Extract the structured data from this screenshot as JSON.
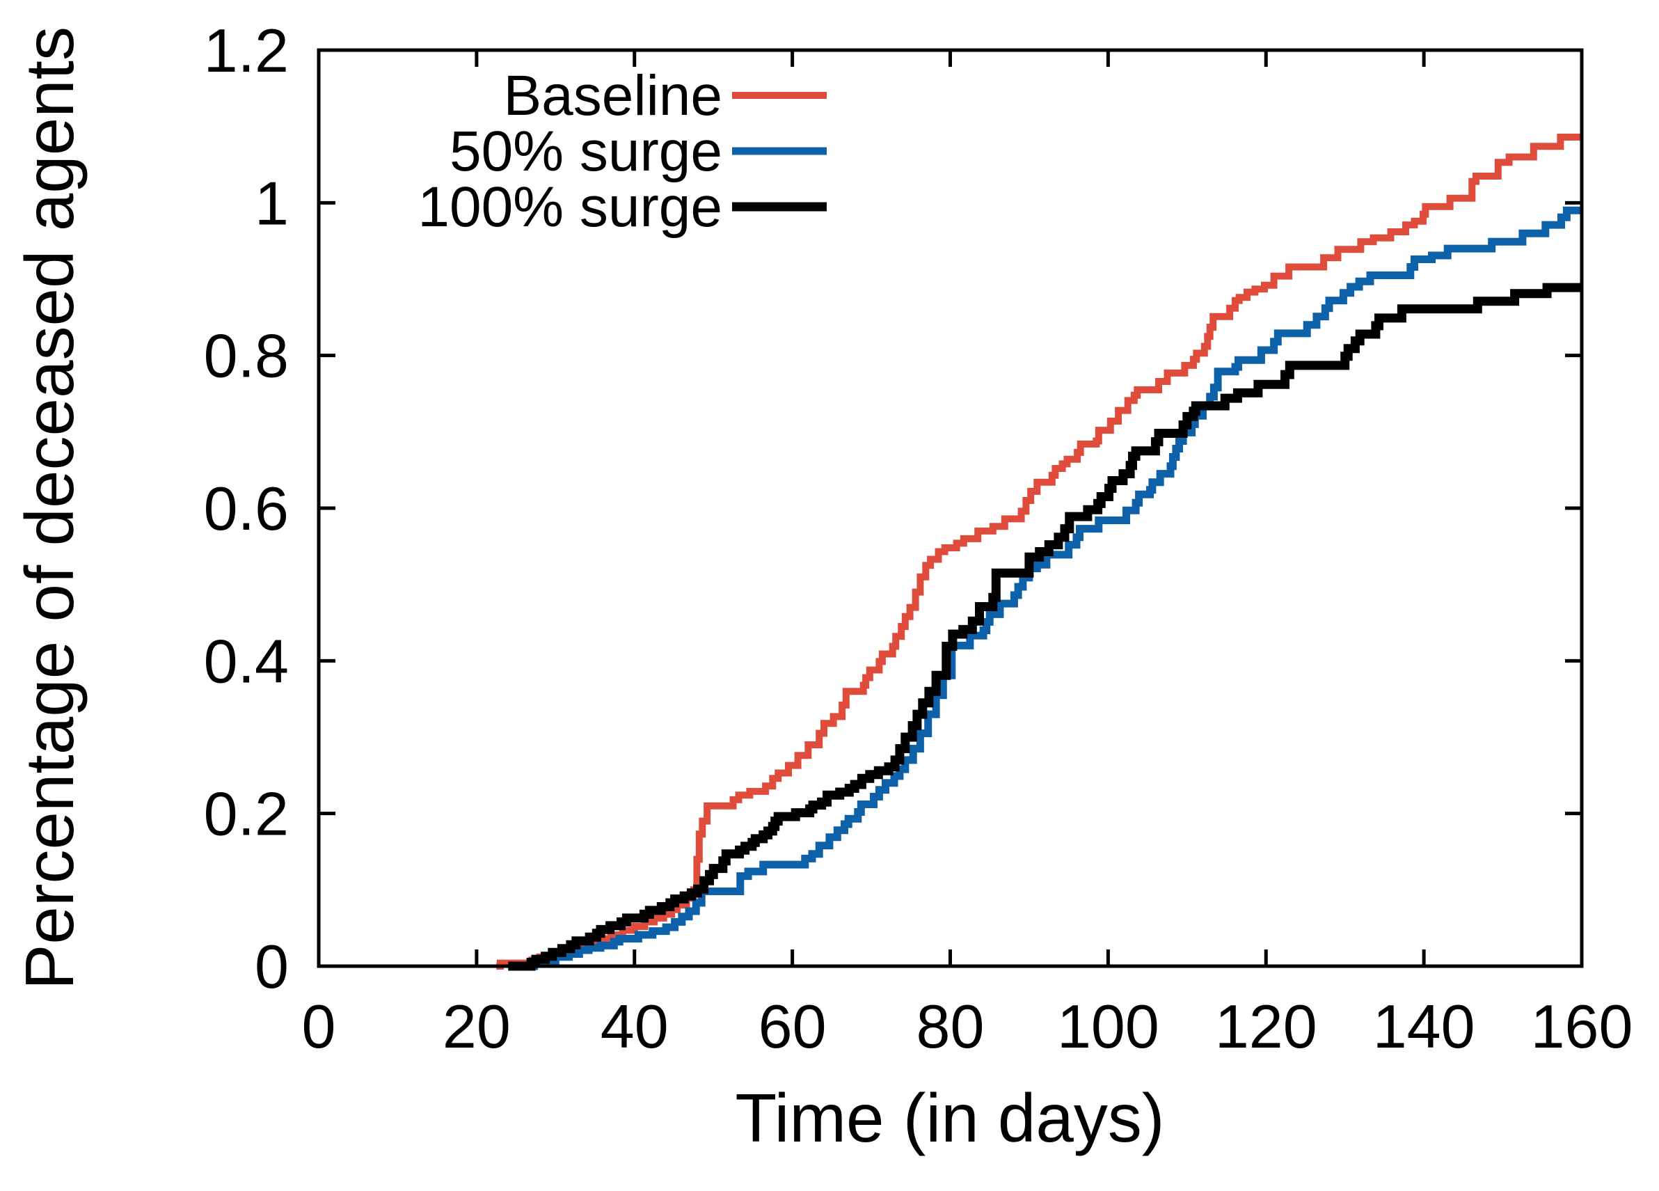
{
  "chart_data": {
    "type": "line",
    "title": "",
    "xlabel": "Time (in days)",
    "ylabel": "Percentage of deceased agents",
    "xlim": [
      0,
      160
    ],
    "ylim": [
      0,
      1.2
    ],
    "xticks": [
      0,
      20,
      40,
      60,
      80,
      100,
      120,
      140,
      160
    ],
    "ytick_values": [
      0,
      0.2,
      0.4,
      0.6,
      0.8,
      1,
      1.2
    ],
    "ytick_labels": [
      "0",
      "0.2",
      "0.4",
      "0.6",
      "0.8",
      "1",
      "1.2"
    ],
    "grid": false,
    "step_mode": "step-after",
    "legend_position": "top-inside-left",
    "axis_color": "#000000",
    "background_color": "#ffffff",
    "series": [
      {
        "name": "Baseline",
        "color": "#e04c3c",
        "stroke_width": 10,
        "points": [
          [
            22.5,
            0
          ],
          [
            23,
            0.004
          ],
          [
            27,
            0.008
          ],
          [
            28,
            0.012
          ],
          [
            29.5,
            0.016
          ],
          [
            31,
            0.021
          ],
          [
            33,
            0.027
          ],
          [
            34.5,
            0.031
          ],
          [
            36,
            0.036
          ],
          [
            37,
            0.041
          ],
          [
            38.5,
            0.047
          ],
          [
            40,
            0.052
          ],
          [
            41.3,
            0.058
          ],
          [
            42.5,
            0.063
          ],
          [
            43.7,
            0.068
          ],
          [
            44.7,
            0.074
          ],
          [
            45.4,
            0.08
          ],
          [
            46.6,
            0.089
          ],
          [
            47.5,
            0.1
          ],
          [
            47.9,
            0.14
          ],
          [
            48.2,
            0.173
          ],
          [
            48.6,
            0.19
          ],
          [
            49.2,
            0.21
          ],
          [
            52.5,
            0.218
          ],
          [
            53.2,
            0.224
          ],
          [
            54.6,
            0.229
          ],
          [
            56.6,
            0.236
          ],
          [
            57.5,
            0.246
          ],
          [
            58.2,
            0.253
          ],
          [
            59.5,
            0.263
          ],
          [
            60.7,
            0.276
          ],
          [
            62,
            0.29
          ],
          [
            63.4,
            0.305
          ],
          [
            64,
            0.318
          ],
          [
            65.2,
            0.327
          ],
          [
            66.3,
            0.342
          ],
          [
            66.8,
            0.36
          ],
          [
            69,
            0.368
          ],
          [
            69.3,
            0.378
          ],
          [
            69.8,
            0.388
          ],
          [
            71,
            0.399
          ],
          [
            71.4,
            0.409
          ],
          [
            72.7,
            0.419
          ],
          [
            73.1,
            0.432
          ],
          [
            73.8,
            0.445
          ],
          [
            74.3,
            0.458
          ],
          [
            74.9,
            0.47
          ],
          [
            75.6,
            0.49
          ],
          [
            76.2,
            0.51
          ],
          [
            76.9,
            0.525
          ],
          [
            77.5,
            0.533
          ],
          [
            78.5,
            0.543
          ],
          [
            79.3,
            0.548
          ],
          [
            80.8,
            0.554
          ],
          [
            81.7,
            0.56
          ],
          [
            83.5,
            0.57
          ],
          [
            85.4,
            0.576
          ],
          [
            86.9,
            0.586
          ],
          [
            89,
            0.596
          ],
          [
            89.6,
            0.61
          ],
          [
            90.2,
            0.622
          ],
          [
            91,
            0.634
          ],
          [
            92.9,
            0.643
          ],
          [
            93.3,
            0.652
          ],
          [
            94.2,
            0.658
          ],
          [
            94.8,
            0.664
          ],
          [
            96.1,
            0.673
          ],
          [
            96.5,
            0.684
          ],
          [
            98.5,
            0.688
          ],
          [
            98.8,
            0.702
          ],
          [
            100.3,
            0.714
          ],
          [
            101.3,
            0.728
          ],
          [
            102.5,
            0.741
          ],
          [
            103.3,
            0.748
          ],
          [
            103.7,
            0.755
          ],
          [
            106.4,
            0.766
          ],
          [
            107.5,
            0.777
          ],
          [
            109.7,
            0.787
          ],
          [
            110.8,
            0.795
          ],
          [
            111.2,
            0.803
          ],
          [
            112.2,
            0.812
          ],
          [
            112.6,
            0.825
          ],
          [
            112.9,
            0.837
          ],
          [
            113.3,
            0.851
          ],
          [
            115.4,
            0.862
          ],
          [
            116.1,
            0.872
          ],
          [
            116.6,
            0.876
          ],
          [
            117.6,
            0.883
          ],
          [
            118.6,
            0.887
          ],
          [
            119.8,
            0.892
          ],
          [
            121,
            0.904
          ],
          [
            122.9,
            0.916
          ],
          [
            127.3,
            0.928
          ],
          [
            129.1,
            0.939
          ],
          [
            132,
            0.949
          ],
          [
            133.6,
            0.954
          ],
          [
            135.8,
            0.962
          ],
          [
            137.7,
            0.971
          ],
          [
            138.8,
            0.976
          ],
          [
            139.9,
            0.985
          ],
          [
            140.2,
            0.995
          ],
          [
            143.3,
            1.006
          ],
          [
            146.1,
            1.028
          ],
          [
            146.6,
            1.035
          ],
          [
            149.4,
            1.053
          ],
          [
            150.8,
            1.06
          ],
          [
            153.9,
            1.074
          ],
          [
            157.3,
            1.086
          ],
          [
            160,
            1.086
          ]
        ]
      },
      {
        "name": "50% surge",
        "color": "#0d61a8",
        "stroke_width": 11,
        "points": [
          [
            26,
            0
          ],
          [
            27.3,
            0.003
          ],
          [
            28.6,
            0.007
          ],
          [
            30,
            0.012
          ],
          [
            31.7,
            0.016
          ],
          [
            33,
            0.021
          ],
          [
            34.2,
            0.024
          ],
          [
            35.7,
            0.027
          ],
          [
            37.4,
            0.032
          ],
          [
            38.1,
            0.036
          ],
          [
            40.5,
            0.041
          ],
          [
            42.3,
            0.046
          ],
          [
            44,
            0.051
          ],
          [
            45.1,
            0.058
          ],
          [
            46,
            0.065
          ],
          [
            46.9,
            0.072
          ],
          [
            47.8,
            0.083
          ],
          [
            48.5,
            0.098
          ],
          [
            53.4,
            0.118
          ],
          [
            54.4,
            0.124
          ],
          [
            56.3,
            0.133
          ],
          [
            61.6,
            0.141
          ],
          [
            62.5,
            0.147
          ],
          [
            63.4,
            0.158
          ],
          [
            64.7,
            0.169
          ],
          [
            65.7,
            0.178
          ],
          [
            66.6,
            0.186
          ],
          [
            67.1,
            0.193
          ],
          [
            68.3,
            0.202
          ],
          [
            68.7,
            0.212
          ],
          [
            70.3,
            0.222
          ],
          [
            71,
            0.231
          ],
          [
            71.8,
            0.24
          ],
          [
            72.9,
            0.249
          ],
          [
            73.6,
            0.258
          ],
          [
            74.3,
            0.27
          ],
          [
            75.3,
            0.285
          ],
          [
            76.2,
            0.305
          ],
          [
            77.2,
            0.33
          ],
          [
            78.2,
            0.355
          ],
          [
            79.1,
            0.381
          ],
          [
            80.2,
            0.42
          ],
          [
            82.5,
            0.433
          ],
          [
            84.2,
            0.44
          ],
          [
            84.6,
            0.451
          ],
          [
            85,
            0.461
          ],
          [
            86.3,
            0.475
          ],
          [
            88.1,
            0.486
          ],
          [
            88.6,
            0.497
          ],
          [
            89.2,
            0.509
          ],
          [
            90,
            0.521
          ],
          [
            91,
            0.526
          ],
          [
            92.2,
            0.539
          ],
          [
            95,
            0.552
          ],
          [
            96,
            0.562
          ],
          [
            96.4,
            0.573
          ],
          [
            98.8,
            0.584
          ],
          [
            102.3,
            0.597
          ],
          [
            103.5,
            0.607
          ],
          [
            103.9,
            0.618
          ],
          [
            105.3,
            0.624
          ],
          [
            105.6,
            0.634
          ],
          [
            106.6,
            0.645
          ],
          [
            107.9,
            0.655
          ],
          [
            108.2,
            0.667
          ],
          [
            108.6,
            0.678
          ],
          [
            109,
            0.688
          ],
          [
            109.5,
            0.699
          ],
          [
            110.6,
            0.71
          ],
          [
            111,
            0.721
          ],
          [
            112,
            0.734
          ],
          [
            112.9,
            0.746
          ],
          [
            113.4,
            0.758
          ],
          [
            113.9,
            0.779
          ],
          [
            116.1,
            0.785
          ],
          [
            116.5,
            0.794
          ],
          [
            119.4,
            0.807
          ],
          [
            121,
            0.818
          ],
          [
            121.5,
            0.829
          ],
          [
            125.2,
            0.84
          ],
          [
            126.4,
            0.851
          ],
          [
            127.5,
            0.862
          ],
          [
            128,
            0.872
          ],
          [
            129.8,
            0.882
          ],
          [
            130.7,
            0.89
          ],
          [
            131.8,
            0.897
          ],
          [
            133.2,
            0.905
          ],
          [
            138.3,
            0.916
          ],
          [
            138.8,
            0.926
          ],
          [
            141,
            0.931
          ],
          [
            143,
            0.94
          ],
          [
            148.6,
            0.949
          ],
          [
            152.5,
            0.96
          ],
          [
            155.4,
            0.971
          ],
          [
            157.4,
            0.981
          ],
          [
            158.1,
            0.99
          ],
          [
            160,
            0.99
          ]
        ]
      },
      {
        "name": "100% surge",
        "color": "#000000",
        "stroke_width": 13,
        "points": [
          [
            24,
            0
          ],
          [
            26.9,
            0.005
          ],
          [
            27.5,
            0.009
          ],
          [
            28.7,
            0.013
          ],
          [
            29.6,
            0.018
          ],
          [
            30.8,
            0.023
          ],
          [
            31.9,
            0.028
          ],
          [
            32.6,
            0.033
          ],
          [
            34.3,
            0.038
          ],
          [
            35.2,
            0.043
          ],
          [
            35.7,
            0.048
          ],
          [
            36.9,
            0.053
          ],
          [
            38.3,
            0.058
          ],
          [
            39,
            0.063
          ],
          [
            41.2,
            0.068
          ],
          [
            41.9,
            0.073
          ],
          [
            43.4,
            0.078
          ],
          [
            44.5,
            0.083
          ],
          [
            45.1,
            0.088
          ],
          [
            46.3,
            0.092
          ],
          [
            47.2,
            0.096
          ],
          [
            48,
            0.101
          ],
          [
            48.8,
            0.112
          ],
          [
            49.5,
            0.12
          ],
          [
            50,
            0.128
          ],
          [
            51.2,
            0.138
          ],
          [
            51.6,
            0.147
          ],
          [
            53.3,
            0.152
          ],
          [
            54,
            0.157
          ],
          [
            54.9,
            0.162
          ],
          [
            55.3,
            0.167
          ],
          [
            56.3,
            0.172
          ],
          [
            56.9,
            0.177
          ],
          [
            57.5,
            0.183
          ],
          [
            57.8,
            0.19
          ],
          [
            58.2,
            0.196
          ],
          [
            60.4,
            0.201
          ],
          [
            62.2,
            0.206
          ],
          [
            62.6,
            0.211
          ],
          [
            63.7,
            0.215
          ],
          [
            64.4,
            0.224
          ],
          [
            66,
            0.228
          ],
          [
            67.2,
            0.233
          ],
          [
            67.9,
            0.238
          ],
          [
            68.8,
            0.246
          ],
          [
            69.8,
            0.251
          ],
          [
            70.9,
            0.256
          ],
          [
            72.2,
            0.261
          ],
          [
            73,
            0.27
          ],
          [
            73.6,
            0.285
          ],
          [
            74.3,
            0.3
          ],
          [
            75.2,
            0.315
          ],
          [
            75.8,
            0.33
          ],
          [
            76.5,
            0.345
          ],
          [
            77.3,
            0.36
          ],
          [
            78.2,
            0.381
          ],
          [
            79.5,
            0.419
          ],
          [
            80.3,
            0.435
          ],
          [
            81.6,
            0.441
          ],
          [
            82.8,
            0.452
          ],
          [
            83.7,
            0.471
          ],
          [
            85.4,
            0.483
          ],
          [
            85.8,
            0.515
          ],
          [
            90,
            0.536
          ],
          [
            91.3,
            0.543
          ],
          [
            92.5,
            0.552
          ],
          [
            93.7,
            0.562
          ],
          [
            94.5,
            0.573
          ],
          [
            95.1,
            0.589
          ],
          [
            97.4,
            0.598
          ],
          [
            98.7,
            0.606
          ],
          [
            99.1,
            0.615
          ],
          [
            100.1,
            0.626
          ],
          [
            100.5,
            0.636
          ],
          [
            101.9,
            0.645
          ],
          [
            102.8,
            0.656
          ],
          [
            103.1,
            0.668
          ],
          [
            103.5,
            0.675
          ],
          [
            106,
            0.687
          ],
          [
            106.4,
            0.698
          ],
          [
            109.5,
            0.709
          ],
          [
            110,
            0.72
          ],
          [
            110.8,
            0.727
          ],
          [
            111.1,
            0.734
          ],
          [
            114.8,
            0.744
          ],
          [
            116.4,
            0.751
          ],
          [
            119,
            0.762
          ],
          [
            122.4,
            0.775
          ],
          [
            123,
            0.787
          ],
          [
            130,
            0.799
          ],
          [
            130.4,
            0.809
          ],
          [
            131.3,
            0.819
          ],
          [
            131.9,
            0.828
          ],
          [
            133.9,
            0.839
          ],
          [
            134.3,
            0.849
          ],
          [
            137.2,
            0.861
          ],
          [
            146.8,
            0.871
          ],
          [
            151.5,
            0.881
          ],
          [
            155.6,
            0.889
          ],
          [
            160,
            0.889
          ]
        ]
      }
    ]
  }
}
